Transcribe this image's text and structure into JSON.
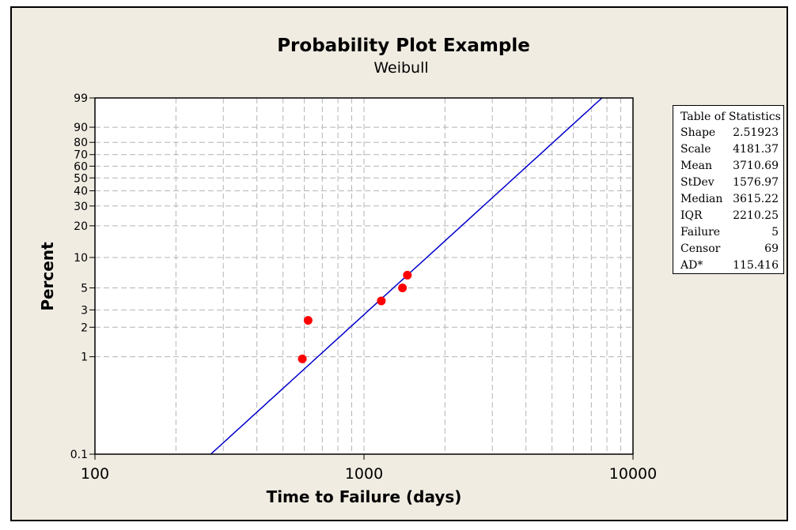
{
  "chart_data": {
    "type": "scatter",
    "title": "Probability Plot Example",
    "subtitle": "Weibull",
    "xlabel": "Time to Failure (days)",
    "ylabel": "Percent",
    "x_scale": "log",
    "y_scale": "weibull-probability",
    "xlim": [
      100,
      10000
    ],
    "ylim": [
      0.1,
      99
    ],
    "x_ticks": [
      100,
      1000,
      10000
    ],
    "x_tick_labels": [
      "100",
      "1000",
      "10000"
    ],
    "x_gridlines": [
      200,
      300,
      400,
      500,
      600,
      700,
      800,
      900,
      2000,
      3000,
      4000,
      5000,
      6000,
      7000,
      8000,
      9000
    ],
    "y_ticks": [
      0.1,
      1,
      2,
      3,
      5,
      10,
      20,
      30,
      40,
      50,
      60,
      70,
      80,
      90,
      99
    ],
    "y_tick_labels": [
      "0.1",
      "1",
      "2",
      "3",
      "5",
      "10",
      "20",
      "30",
      "40",
      "50",
      "60",
      "70",
      "80",
      "90",
      "99"
    ],
    "grid": true,
    "points": [
      {
        "x": 590,
        "y": 0.95
      },
      {
        "x": 620,
        "y": 2.35
      },
      {
        "x": 1160,
        "y": 3.7
      },
      {
        "x": 1390,
        "y": 5.0
      },
      {
        "x": 1450,
        "y": 6.7
      }
    ],
    "fit_line": {
      "shape": 2.51923,
      "scale": 4181.37
    },
    "point_color": "#ff0000",
    "line_color": "#0000cc",
    "grid_color": "#b4b4b4",
    "plot_background": "#ffffff",
    "frame_background": "#f0ece2"
  },
  "stats_table": {
    "title": "Table of Statistics",
    "rows": [
      {
        "label": "Shape",
        "value": "2.51923"
      },
      {
        "label": "Scale",
        "value": "4181.37"
      },
      {
        "label": "Mean",
        "value": "3710.69"
      },
      {
        "label": "StDev",
        "value": "1576.97"
      },
      {
        "label": "Median",
        "value": "3615.22"
      },
      {
        "label": "IQR",
        "value": "2210.25"
      },
      {
        "label": "Failure",
        "value": "5"
      },
      {
        "label": "Censor",
        "value": "69"
      },
      {
        "label": "AD*",
        "value": "115.416"
      }
    ]
  }
}
